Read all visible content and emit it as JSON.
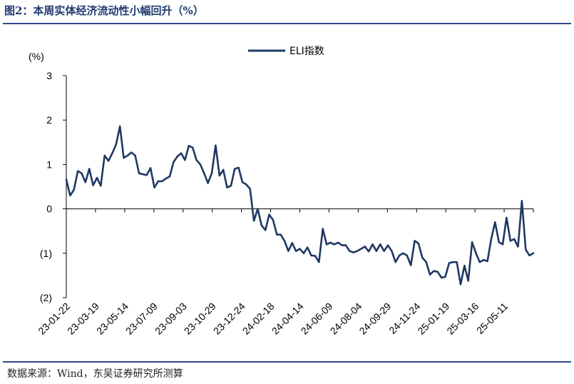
{
  "header": {
    "title": "图2：本周实体经济流动性小幅回升（%）"
  },
  "footer": {
    "source": "数据来源：Wind，东吴证券研究所测算"
  },
  "colors": {
    "line": "#1f3864",
    "negative_label": "#c00000",
    "rule": "#2d4a8a"
  },
  "chart_data": {
    "type": "line",
    "title": "本周实体经济流动性小幅回升（%）",
    "unit_label": "(%)",
    "ylim": [
      -2,
      3
    ],
    "y_ticks": [
      {
        "value": 3,
        "label": "3"
      },
      {
        "value": 2,
        "label": "2"
      },
      {
        "value": 1,
        "label": "1"
      },
      {
        "value": 0,
        "label": "0"
      },
      {
        "value": -1,
        "label": "(1)"
      },
      {
        "value": -2,
        "label": "(2)"
      }
    ],
    "x_tick_labels": [
      "23-01-22",
      "23-03-19",
      "23-05-14",
      "23-07-09",
      "23-09-03",
      "23-10-29",
      "23-12-24",
      "24-02-18",
      "24-04-14",
      "24-06-09",
      "24-08-04",
      "24-09-29",
      "24-11-24",
      "25-01-19",
      "25-03-16",
      "25-05-11"
    ],
    "legend": {
      "position": "top-center",
      "entries": [
        "ELI指数"
      ]
    },
    "series": [
      {
        "name": "ELI指数",
        "values": [
          0.66,
          0.3,
          0.43,
          0.85,
          0.8,
          0.6,
          0.9,
          0.53,
          0.7,
          0.52,
          1.2,
          1.08,
          1.25,
          1.45,
          1.86,
          1.15,
          1.2,
          1.27,
          1.2,
          0.8,
          0.78,
          0.76,
          0.92,
          0.48,
          0.62,
          0.62,
          0.68,
          0.73,
          1.05,
          1.18,
          1.25,
          1.1,
          1.42,
          1.38,
          1.1,
          1.0,
          0.8,
          0.58,
          0.8,
          1.43,
          0.75,
          0.88,
          0.48,
          0.52,
          0.9,
          0.93,
          0.6,
          0.55,
          0.45,
          -0.27,
          0.0,
          -0.37,
          -0.48,
          -0.13,
          -0.25,
          -0.58,
          -0.58,
          -0.72,
          -0.95,
          -0.77,
          -0.95,
          -0.9,
          -1.0,
          -0.87,
          -1.05,
          -1.06,
          -1.2,
          -0.45,
          -0.8,
          -0.76,
          -0.8,
          -0.76,
          -0.82,
          -0.82,
          -0.95,
          -0.98,
          -0.95,
          -0.9,
          -0.85,
          -0.96,
          -0.8,
          -0.95,
          -0.8,
          -0.95,
          -0.82,
          -0.95,
          -1.2,
          -1.05,
          -1.0,
          -1.05,
          -1.27,
          -0.72,
          -0.78,
          -1.1,
          -1.2,
          -1.48,
          -1.4,
          -1.42,
          -1.55,
          -1.53,
          -1.22,
          -1.2,
          -1.2,
          -1.7,
          -1.28,
          -1.62,
          -0.75,
          -1.0,
          -1.2,
          -1.15,
          -1.18,
          -0.68,
          -0.3,
          -0.75,
          -0.8,
          -0.2,
          -0.72,
          -0.68,
          -0.85,
          0.18,
          -0.92,
          -1.05,
          -1.0
        ]
      }
    ]
  }
}
